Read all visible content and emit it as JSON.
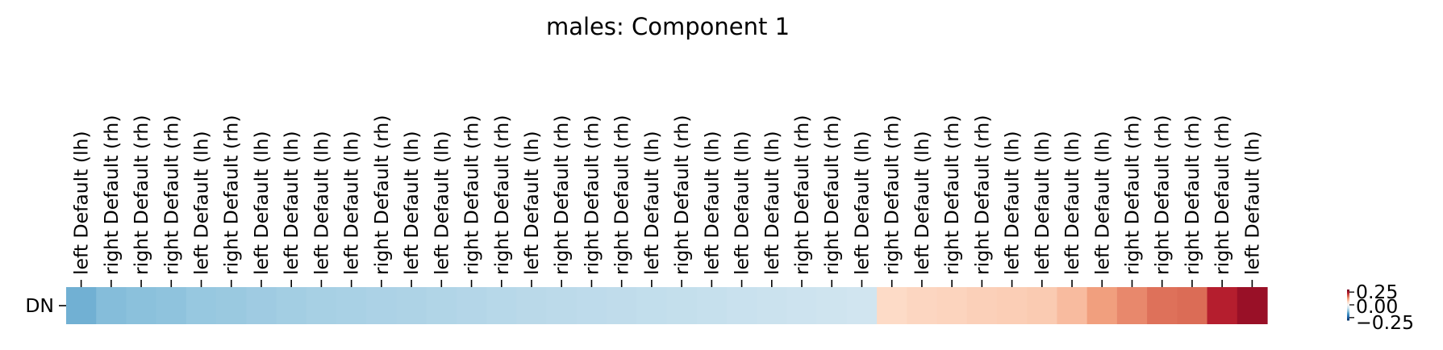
{
  "chart_data": {
    "type": "heatmap",
    "title": "males: Component 1",
    "xlabel": "",
    "ylabel": "",
    "rows": [
      "DN"
    ],
    "columns": [
      "left Default (lh)",
      "right Default (rh)",
      "right Default (rh)",
      "right Default (rh)",
      "left Default (lh)",
      "right Default (rh)",
      "left Default (lh)",
      "left Default (lh)",
      "left Default (lh)",
      "left Default (lh)",
      "right Default (rh)",
      "left Default (lh)",
      "left Default (lh)",
      "right Default (rh)",
      "right Default (rh)",
      "left Default (lh)",
      "right Default (rh)",
      "right Default (rh)",
      "right Default (rh)",
      "left Default (lh)",
      "right Default (rh)",
      "left Default (lh)",
      "left Default (lh)",
      "left Default (lh)",
      "right Default (rh)",
      "right Default (rh)",
      "left Default (lh)",
      "right Default (rh)",
      "left Default (lh)",
      "right Default (rh)",
      "right Default (rh)",
      "left Default (lh)",
      "left Default (lh)",
      "left Default (lh)",
      "left Default (lh)",
      "right Default (rh)",
      "right Default (rh)",
      "right Default (rh)",
      "right Default (rh)",
      "left Default (lh)"
    ],
    "values": [
      [
        -0.145,
        -0.13,
        -0.125,
        -0.122,
        -0.115,
        -0.112,
        -0.108,
        -0.104,
        -0.1,
        -0.098,
        -0.095,
        -0.093,
        -0.09,
        -0.088,
        -0.085,
        -0.082,
        -0.08,
        -0.078,
        -0.076,
        -0.074,
        -0.072,
        -0.07,
        -0.068,
        -0.066,
        -0.064,
        -0.062,
        -0.06,
        0.06,
        0.065,
        0.068,
        0.072,
        0.075,
        0.078,
        0.095,
        0.125,
        0.145,
        0.165,
        0.17,
        0.235,
        0.26
      ]
    ],
    "colormap": "RdBu_r",
    "vmin": -0.3,
    "vmax": 0.3,
    "colorbar": {
      "ticks": [
        0.25,
        0.0,
        -0.25
      ],
      "tick_labels": [
        "0.25",
        "0.00",
        "−0.25"
      ]
    }
  }
}
